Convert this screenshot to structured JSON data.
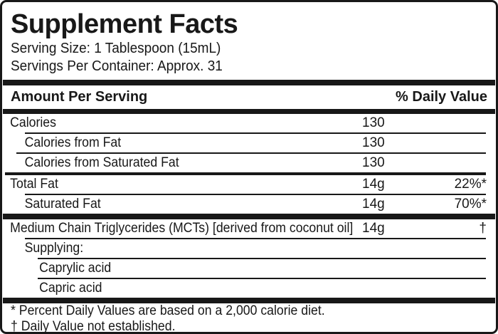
{
  "label": {
    "title": "Supplement Facts",
    "serving_size": "Serving Size: 1 Tablespoon (15mL)",
    "servings_per_container": "Servings Per Container: Approx. 31",
    "header": {
      "amount_col": "Amount Per Serving",
      "daily_value_col": "% Daily Value"
    },
    "rows": [
      {
        "label": "Calories",
        "amount": "130",
        "daily_value": ""
      },
      {
        "label": "Calories from Fat",
        "amount": "130",
        "daily_value": ""
      },
      {
        "label": "Calories from Saturated Fat",
        "amount": "130",
        "daily_value": ""
      },
      {
        "label": "Total Fat",
        "amount": "14g",
        "daily_value": "22%*"
      },
      {
        "label": "Saturated Fat",
        "amount": "14g",
        "daily_value": "70%*"
      },
      {
        "label": "Medium Chain Triglycerides (MCTs) [derived from coconut oil]",
        "amount": "14g",
        "daily_value": "†"
      },
      {
        "label": "Supplying:",
        "amount": "",
        "daily_value": ""
      },
      {
        "label": "Caprylic acid",
        "amount": "",
        "daily_value": ""
      },
      {
        "label": "Capric acid",
        "amount": "",
        "daily_value": ""
      }
    ],
    "footnotes": [
      "* Percent Daily Values are based on a 2,000 calorie diet.",
      "† Daily Value not established."
    ],
    "colors": {
      "ink": "#181818",
      "background": "#ffffff"
    }
  }
}
